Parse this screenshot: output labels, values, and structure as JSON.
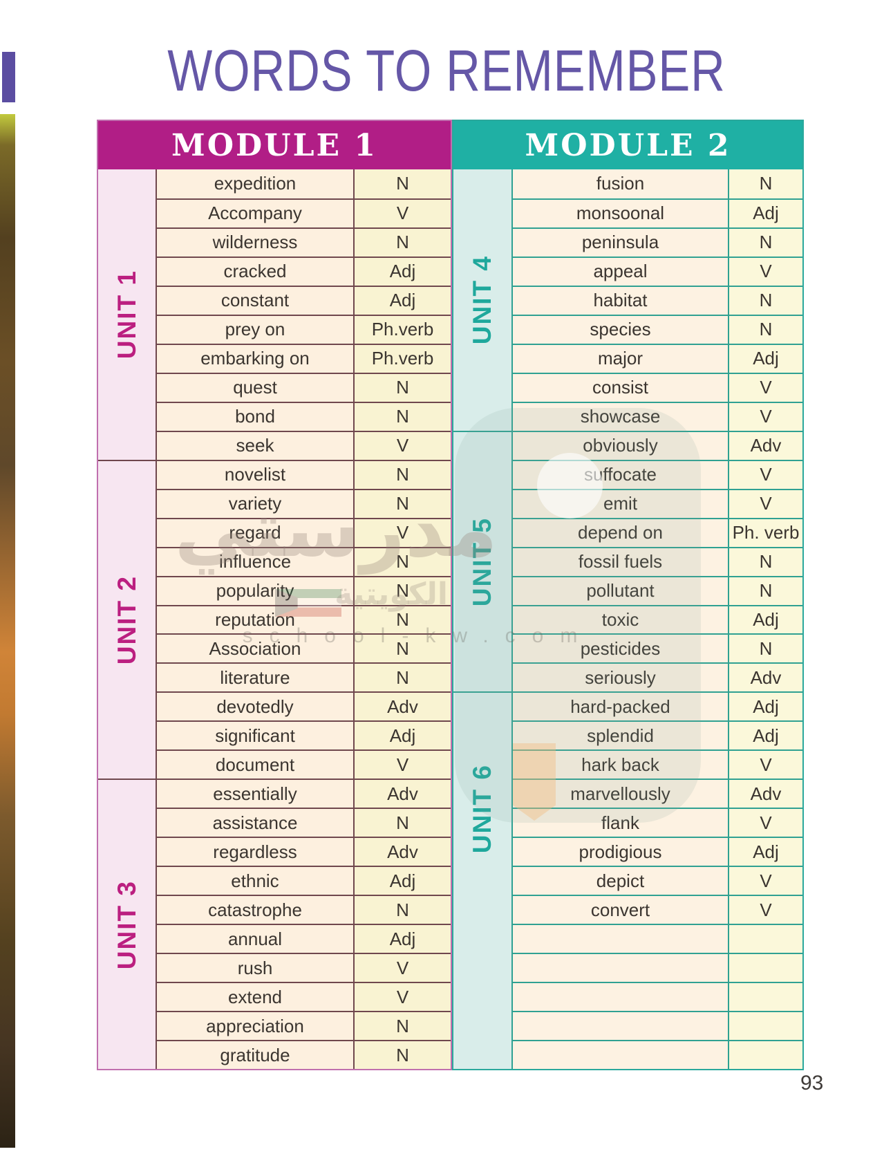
{
  "page": {
    "title": "WORDS TO REMEMBER",
    "page_number": "93"
  },
  "watermark": {
    "arabic_main": "مدرستي",
    "arabic_sub": "الكويتية",
    "site": "school-kw.com"
  },
  "colors": {
    "module1_header": "#b11e86",
    "module2_header": "#1fb0a4",
    "title_purple": "#6557a7",
    "m1_unit_text": "#bb1f80",
    "m2_unit_text": "#1fa89c"
  },
  "modules": [
    {
      "label": "MODULE 1",
      "theme": "m1",
      "units": [
        {
          "label": "UNIT 1",
          "rows": [
            {
              "word": "expedition",
              "pos": "N"
            },
            {
              "word": "Accompany",
              "pos": "V"
            },
            {
              "word": "wilderness",
              "pos": "N"
            },
            {
              "word": "cracked",
              "pos": "Adj"
            },
            {
              "word": "constant",
              "pos": "Adj"
            },
            {
              "word": "prey on",
              "pos": "Ph.verb"
            },
            {
              "word": "embarking on",
              "pos": "Ph.verb"
            },
            {
              "word": "quest",
              "pos": "N"
            },
            {
              "word": "bond",
              "pos": "N"
            },
            {
              "word": "seek",
              "pos": "V"
            }
          ]
        },
        {
          "label": "UNIT 2",
          "rows": [
            {
              "word": "novelist",
              "pos": "N"
            },
            {
              "word": "variety",
              "pos": "N"
            },
            {
              "word": "regard",
              "pos": "V"
            },
            {
              "word": "influence",
              "pos": "N"
            },
            {
              "word": "popularity",
              "pos": "N"
            },
            {
              "word": "reputation",
              "pos": "N"
            },
            {
              "word": "Association",
              "pos": "N"
            },
            {
              "word": "literature",
              "pos": "N"
            },
            {
              "word": "devotedly",
              "pos": "Adv"
            },
            {
              "word": "significant",
              "pos": "Adj"
            },
            {
              "word": "document",
              "pos": "V"
            }
          ]
        },
        {
          "label": "UNIT 3",
          "rows": [
            {
              "word": "essentially",
              "pos": "Adv"
            },
            {
              "word": "assistance",
              "pos": "N"
            },
            {
              "word": "regardless",
              "pos": "Adv"
            },
            {
              "word": "ethnic",
              "pos": "Adj"
            },
            {
              "word": "catastrophe",
              "pos": "N"
            },
            {
              "word": "annual",
              "pos": "Adj"
            },
            {
              "word": "rush",
              "pos": "V"
            },
            {
              "word": "extend",
              "pos": "V"
            },
            {
              "word": "appreciation",
              "pos": "N"
            },
            {
              "word": "gratitude",
              "pos": "N"
            }
          ]
        }
      ]
    },
    {
      "label": "MODULE 2",
      "theme": "m2",
      "units": [
        {
          "label": "UNIT 4",
          "rows": [
            {
              "word": "fusion",
              "pos": "N"
            },
            {
              "word": "monsoonal",
              "pos": "Adj"
            },
            {
              "word": "peninsula",
              "pos": "N"
            },
            {
              "word": "appeal",
              "pos": "V"
            },
            {
              "word": "habitat",
              "pos": "N"
            },
            {
              "word": "species",
              "pos": "N"
            },
            {
              "word": "major",
              "pos": "Adj"
            },
            {
              "word": "consist",
              "pos": "V"
            },
            {
              "word": "showcase",
              "pos": "V"
            }
          ]
        },
        {
          "label": "UNIT 5",
          "rows": [
            {
              "word": "obviously",
              "pos": "Adv"
            },
            {
              "word": "suffocate",
              "pos": "V"
            },
            {
              "word": "emit",
              "pos": "V"
            },
            {
              "word": "depend on",
              "pos": "Ph. verb"
            },
            {
              "word": "fossil fuels",
              "pos": "N"
            },
            {
              "word": "pollutant",
              "pos": "N"
            },
            {
              "word": "toxic",
              "pos": "Adj"
            },
            {
              "word": "pesticides",
              "pos": "N"
            },
            {
              "word": "seriously",
              "pos": "Adv"
            }
          ]
        },
        {
          "label": "UNIT 6",
          "rows": [
            {
              "word": "hard-packed",
              "pos": "Adj"
            },
            {
              "word": "splendid",
              "pos": "Adj"
            },
            {
              "word": "hark back",
              "pos": "V"
            },
            {
              "word": "marvellously",
              "pos": "Adv"
            },
            {
              "word": "flank",
              "pos": "V"
            },
            {
              "word": "prodigious",
              "pos": "Adj"
            },
            {
              "word": "depict",
              "pos": "V"
            },
            {
              "word": "convert",
              "pos": "V"
            },
            {
              "word": "",
              "pos": ""
            },
            {
              "word": "",
              "pos": ""
            },
            {
              "word": "",
              "pos": ""
            },
            {
              "word": "",
              "pos": ""
            },
            {
              "word": "",
              "pos": ""
            }
          ]
        }
      ]
    }
  ]
}
